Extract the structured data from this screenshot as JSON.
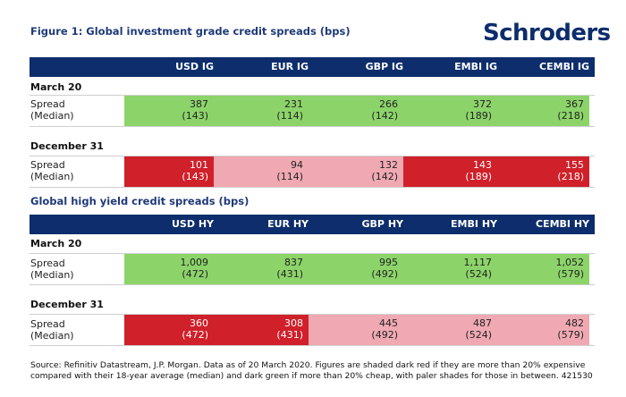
{
  "brand": {
    "logo": "Schroders",
    "colors": {
      "navy": "#0d2d6c",
      "title_blue": "#1f3a7a",
      "dark_green": "#8cd46a",
      "dark_red": "#d0202a",
      "light_red": "#f0a9b2"
    }
  },
  "row_label": {
    "line1": "Spread",
    "line2": "(Median)"
  },
  "source": "Source: Refinitiv Datastream, J.P. Morgan. Data as of 20 March 2020. Figures are shaded dark red if they are more than 20% expensive compared with their 18-year average (median) and dark green if more than 20% cheap, with paler shades for those in between. 421530",
  "chart_data": [
    {
      "type": "table",
      "title": "Figure 1: Global investment grade credit spreads (bps)",
      "columns": [
        "USD IG",
        "EUR IG",
        "GBP IG",
        "EMBI IG",
        "CEMBI IG"
      ],
      "sections": [
        {
          "name": "March 20",
          "spread": [
            "387",
            "231",
            "266",
            "372",
            "367"
          ],
          "median": [
            "(143)",
            "(114)",
            "(142)",
            "(189)",
            "(218)"
          ],
          "shading": [
            "dark_green",
            "dark_green",
            "dark_green",
            "dark_green",
            "dark_green"
          ]
        },
        {
          "name": "December 31",
          "spread": [
            "101",
            "94",
            "132",
            "143",
            "155"
          ],
          "median": [
            "(143)",
            "(114)",
            "(142)",
            "(189)",
            "(218)"
          ],
          "shading": [
            "dark_red",
            "light_red",
            "light_red",
            "dark_red",
            "dark_red"
          ]
        }
      ]
    },
    {
      "type": "table",
      "title": "Global high yield credit spreads (bps)",
      "columns": [
        "USD HY",
        "EUR HY",
        "GBP HY",
        "EMBI HY",
        "CEMBI HY"
      ],
      "sections": [
        {
          "name": "March 20",
          "spread": [
            "1,009",
            "837",
            "995",
            "1,117",
            "1,052"
          ],
          "median": [
            "(472)",
            "(431)",
            "(492)",
            "(524)",
            "(579)"
          ],
          "shading": [
            "dark_green",
            "dark_green",
            "dark_green",
            "dark_green",
            "dark_green"
          ]
        },
        {
          "name": "December 31",
          "spread": [
            "360",
            "308",
            "445",
            "487",
            "482"
          ],
          "median": [
            "(472)",
            "(431)",
            "(492)",
            "(524)",
            "(579)"
          ],
          "shading": [
            "dark_red",
            "dark_red",
            "light_red",
            "light_red",
            "light_red"
          ]
        }
      ]
    }
  ]
}
